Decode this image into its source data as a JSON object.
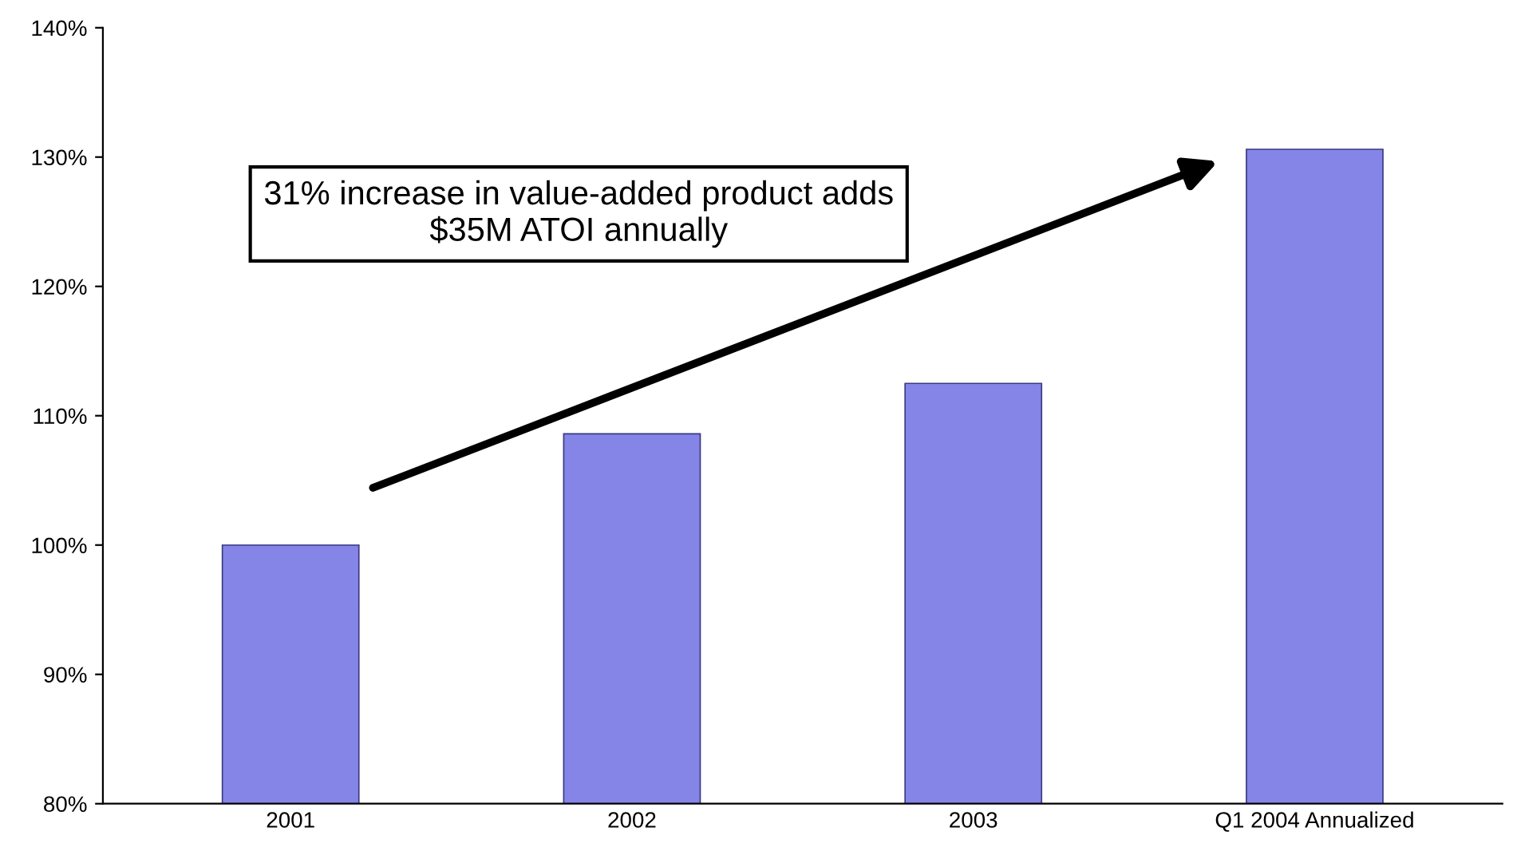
{
  "chart_data": {
    "type": "bar",
    "categories": [
      "2001",
      "2002",
      "2003",
      "Q1 2004 Annualized"
    ],
    "values": [
      100,
      108.6,
      112.5,
      130.6
    ],
    "color": "#8585e8",
    "ylim": [
      80,
      140
    ],
    "yticks": [
      {
        "value": 80,
        "label": "80%"
      },
      {
        "value": 90,
        "label": "90%"
      },
      {
        "value": 100,
        "label": "100%"
      },
      {
        "value": 110,
        "label": "110%"
      },
      {
        "value": 120,
        "label": "120%"
      },
      {
        "value": 130,
        "label": "130%"
      },
      {
        "value": 140,
        "label": "140%"
      }
    ],
    "grid": false,
    "legend": false,
    "annotations": [
      "31% increase in value-added product adds $35M ATOI annually"
    ]
  }
}
